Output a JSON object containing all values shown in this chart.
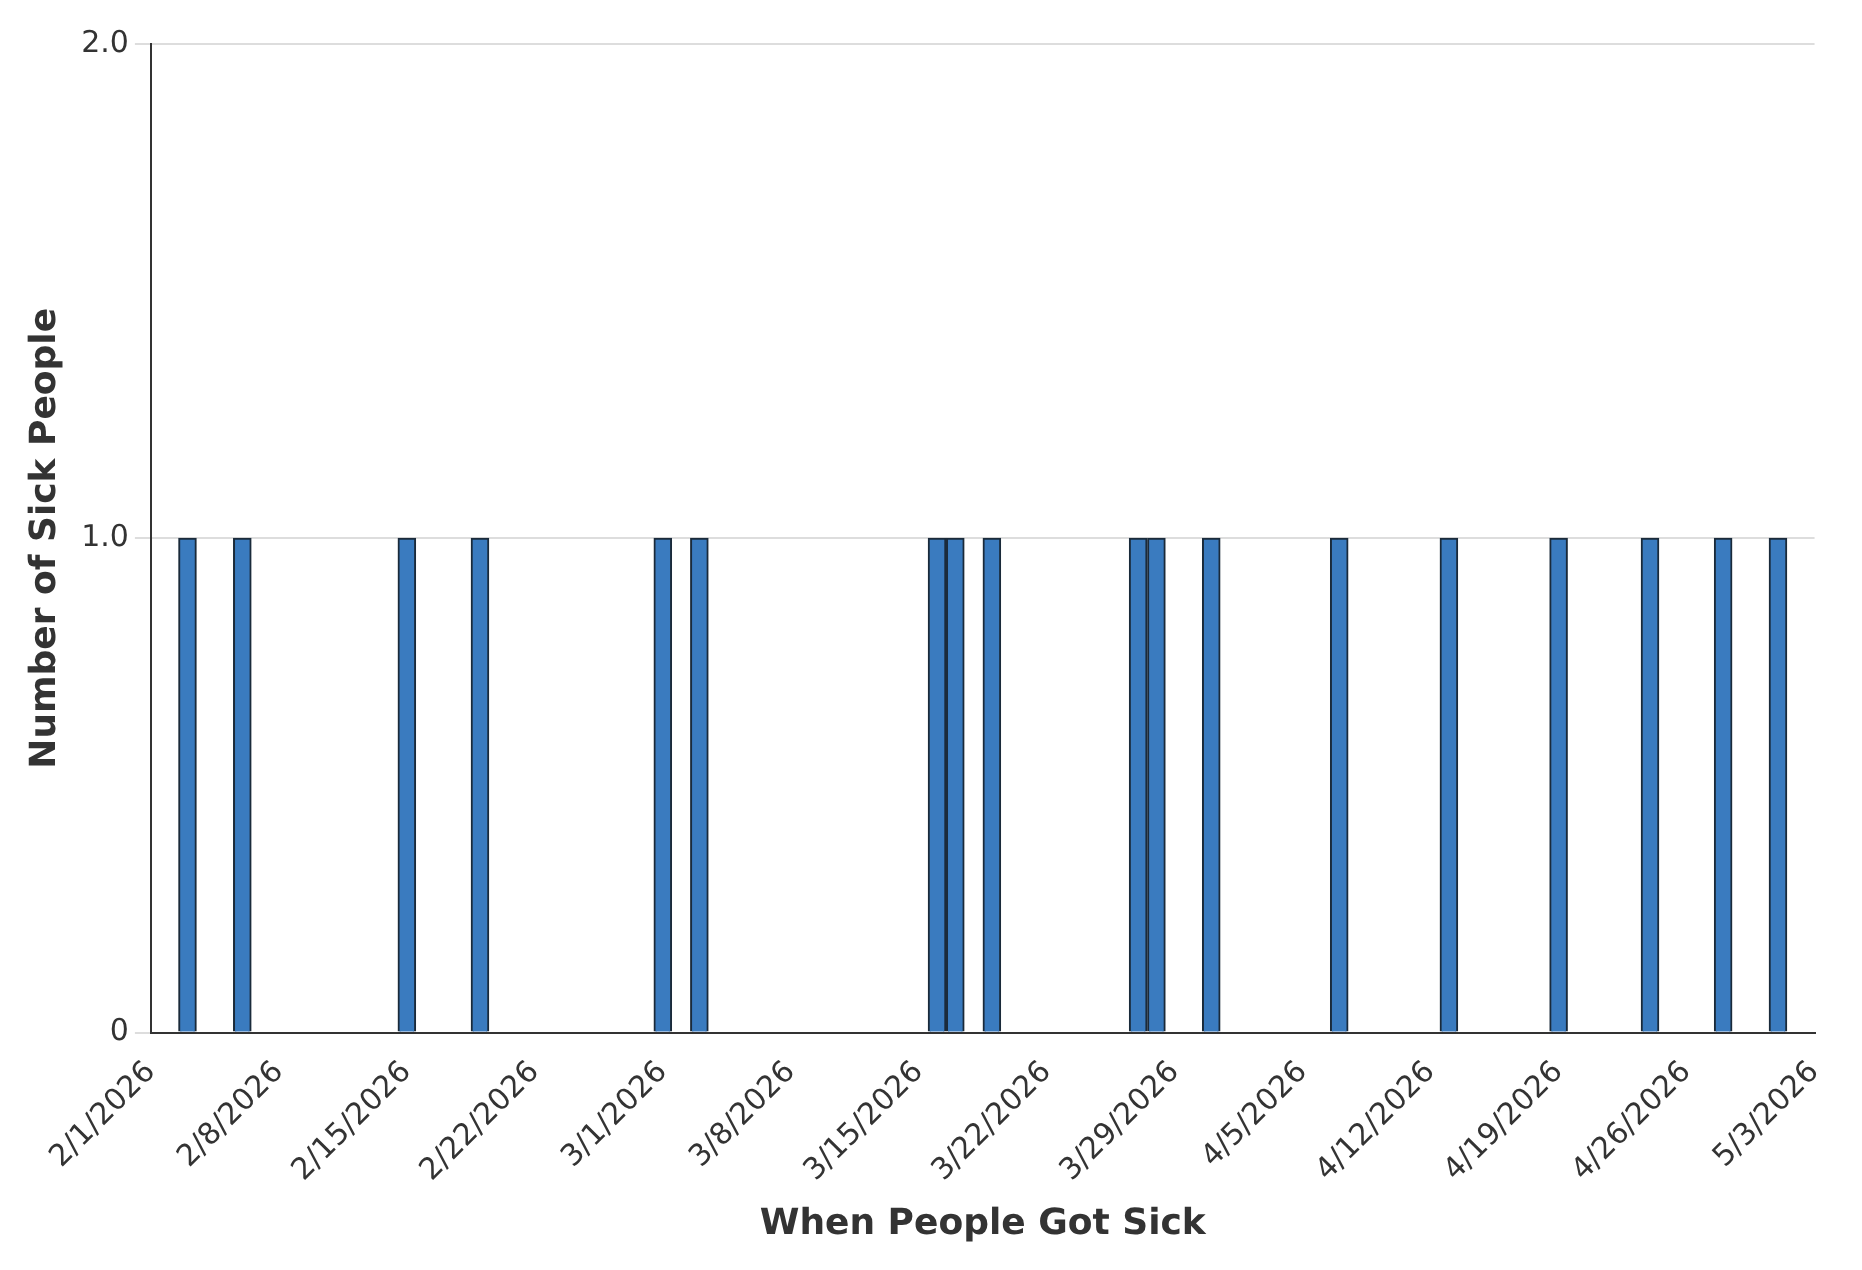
{
  "chart_data": {
    "type": "bar",
    "xlabel": "When People Got Sick",
    "ylabel": "Number of Sick People",
    "x": [
      "2026-02-03",
      "2026-02-06",
      "2026-02-15",
      "2026-02-19",
      "2026-03-01",
      "2026-03-03",
      "2026-03-16",
      "2026-03-17",
      "2026-03-19",
      "2026-03-27",
      "2026-03-28",
      "2026-03-31",
      "2026-04-07",
      "2026-04-13",
      "2026-04-19",
      "2026-04-24",
      "2026-04-28",
      "2026-05-01"
    ],
    "values": [
      1,
      1,
      1,
      1,
      1,
      1,
      1,
      1,
      1,
      1,
      1,
      1,
      1,
      1,
      1,
      1,
      1,
      1
    ],
    "color": "#3a7bbf",
    "xlim": [
      "2026-02-01",
      "2026-05-03"
    ],
    "xticks": [
      {
        "value": "2026-02-01",
        "label": "2/1/2026"
      },
      {
        "value": "2026-02-08",
        "label": "2/8/2026"
      },
      {
        "value": "2026-02-15",
        "label": "2/15/2026"
      },
      {
        "value": "2026-02-22",
        "label": "2/22/2026"
      },
      {
        "value": "2026-03-01",
        "label": "3/1/2026"
      },
      {
        "value": "2026-03-08",
        "label": "3/8/2026"
      },
      {
        "value": "2026-03-15",
        "label": "3/15/2026"
      },
      {
        "value": "2026-03-22",
        "label": "3/22/2026"
      },
      {
        "value": "2026-03-29",
        "label": "3/29/2026"
      },
      {
        "value": "2026-04-05",
        "label": "4/5/2026"
      },
      {
        "value": "2026-04-12",
        "label": "4/12/2026"
      },
      {
        "value": "2026-04-19",
        "label": "4/19/2026"
      },
      {
        "value": "2026-04-26",
        "label": "4/26/2026"
      },
      {
        "value": "2026-05-03",
        "label": "5/3/2026"
      }
    ],
    "ylim": [
      0,
      2
    ],
    "yticks": [
      {
        "value": 0,
        "label": "0"
      },
      {
        "value": 1,
        "label": "1.0"
      },
      {
        "value": 2,
        "label": "2.0"
      }
    ],
    "grid": "y"
  }
}
